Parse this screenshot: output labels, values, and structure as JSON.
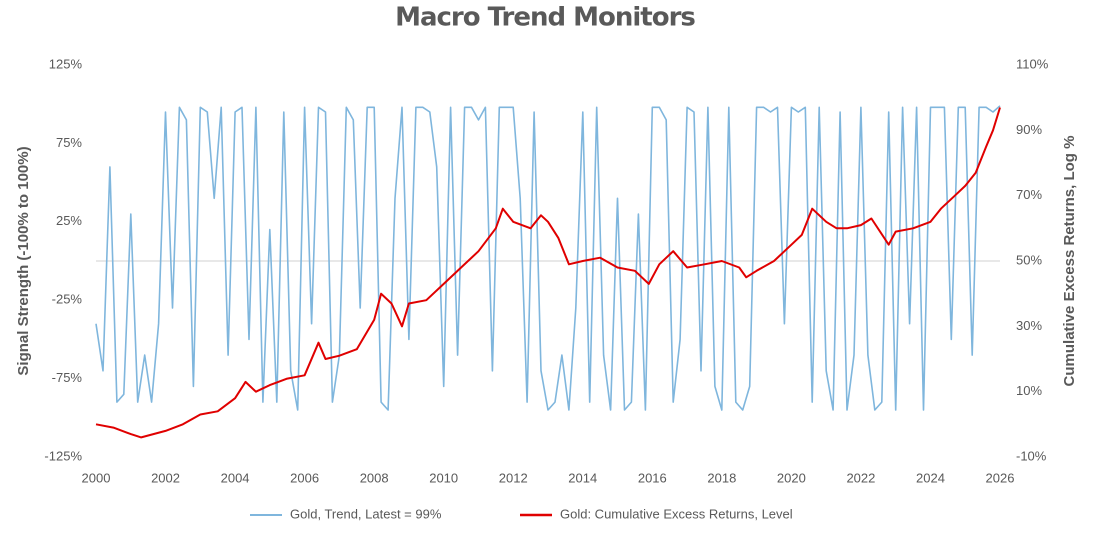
{
  "chart_data": {
    "type": "line",
    "title": "Macro Trend Monitors",
    "y_label": "Signal Strength (-100% to 100%)",
    "y2_label": "Cumulative Excess Returns, Log %",
    "xlim": [
      2000,
      2026
    ],
    "xticks": [
      2000,
      2002,
      2004,
      2006,
      2008,
      2010,
      2012,
      2014,
      2016,
      2018,
      2020,
      2022,
      2024,
      2026
    ],
    "ylim": [
      -125,
      125
    ],
    "yticks": [
      {
        "value": -125,
        "label": "-125%"
      },
      {
        "value": -75,
        "label": "-75%"
      },
      {
        "value": -25,
        "label": "-25%"
      },
      {
        "value": 25,
        "label": "25%"
      },
      {
        "value": 75,
        "label": "75%"
      },
      {
        "value": 125,
        "label": "125%"
      }
    ],
    "y2lim": [
      -10,
      110
    ],
    "y2ticks": [
      {
        "value": -10,
        "label": "-10%"
      },
      {
        "value": 10,
        "label": "10%"
      },
      {
        "value": 30,
        "label": "30%"
      },
      {
        "value": 50,
        "label": "50%"
      },
      {
        "value": 70,
        "label": "70%"
      },
      {
        "value": 90,
        "label": "90%"
      },
      {
        "value": 110,
        "label": "110%"
      }
    ],
    "series": [
      {
        "name": "Gold, Trend, Latest = 99%",
        "color": "#7fb6dd",
        "axis": "y",
        "x": [
          2000.0,
          2000.2,
          2000.4,
          2000.6,
          2000.8,
          2001.0,
          2001.2,
          2001.4,
          2001.6,
          2001.8,
          2002.0,
          2002.2,
          2002.4,
          2002.6,
          2002.8,
          2003.0,
          2003.2,
          2003.4,
          2003.6,
          2003.8,
          2004.0,
          2004.2,
          2004.4,
          2004.6,
          2004.8,
          2005.0,
          2005.2,
          2005.4,
          2005.6,
          2005.8,
          2006.0,
          2006.2,
          2006.4,
          2006.6,
          2006.8,
          2007.0,
          2007.2,
          2007.4,
          2007.6,
          2007.8,
          2008.0,
          2008.2,
          2008.4,
          2008.6,
          2008.8,
          2009.0,
          2009.2,
          2009.4,
          2009.6,
          2009.8,
          2010.0,
          2010.2,
          2010.4,
          2010.6,
          2010.8,
          2011.0,
          2011.2,
          2011.4,
          2011.6,
          2011.8,
          2012.0,
          2012.2,
          2012.4,
          2012.6,
          2012.8,
          2013.0,
          2013.2,
          2013.4,
          2013.6,
          2013.8,
          2014.0,
          2014.2,
          2014.4,
          2014.6,
          2014.8,
          2015.0,
          2015.2,
          2015.4,
          2015.6,
          2015.8,
          2016.0,
          2016.2,
          2016.4,
          2016.6,
          2016.8,
          2017.0,
          2017.2,
          2017.4,
          2017.6,
          2017.8,
          2018.0,
          2018.2,
          2018.4,
          2018.6,
          2018.8,
          2019.0,
          2019.2,
          2019.4,
          2019.6,
          2019.8,
          2020.0,
          2020.2,
          2020.4,
          2020.6,
          2020.8,
          2021.0,
          2021.2,
          2021.4,
          2021.6,
          2021.8,
          2022.0,
          2022.2,
          2022.4,
          2022.6,
          2022.8,
          2023.0,
          2023.2,
          2023.4,
          2023.6,
          2023.8,
          2024.0,
          2024.2,
          2024.4,
          2024.6,
          2024.8,
          2025.0,
          2025.2,
          2025.4,
          2025.6,
          2025.8,
          2026.0
        ],
        "values": [
          -40,
          -70,
          60,
          -90,
          -85,
          30,
          -90,
          -60,
          -90,
          -40,
          95,
          -30,
          98,
          90,
          -80,
          98,
          95,
          40,
          98,
          -60,
          95,
          98,
          -50,
          98,
          -90,
          20,
          -90,
          95,
          -70,
          -95,
          98,
          -40,
          98,
          95,
          -90,
          -60,
          98,
          90,
          -30,
          98,
          98,
          -90,
          -95,
          40,
          98,
          -50,
          98,
          98,
          95,
          60,
          -80,
          98,
          -60,
          98,
          98,
          90,
          98,
          -70,
          98,
          98,
          98,
          40,
          -90,
          95,
          -70,
          -95,
          -90,
          -60,
          -95,
          -30,
          95,
          -90,
          98,
          -60,
          -95,
          40,
          -95,
          -90,
          30,
          -95,
          98,
          98,
          90,
          -90,
          -50,
          98,
          95,
          -70,
          98,
          -80,
          -95,
          98,
          -90,
          -95,
          -80,
          98,
          98,
          95,
          98,
          -40,
          98,
          95,
          98,
          -90,
          98,
          -70,
          -95,
          95,
          -95,
          -60,
          98,
          -60,
          -95,
          -90,
          95,
          -95,
          98,
          -40,
          98,
          -95,
          98,
          98,
          98,
          -50,
          98,
          98,
          -60,
          98,
          98,
          95,
          99
        ]
      },
      {
        "name": "Gold: Cumulative Excess Returns, Level",
        "color": "#e00000",
        "axis": "y2",
        "x": [
          2000,
          2000.5,
          2001,
          2001.3,
          2002,
          2002.5,
          2003,
          2003.5,
          2004,
          2004.3,
          2004.6,
          2005,
          2005.5,
          2006,
          2006.4,
          2006.6,
          2007,
          2007.5,
          2008,
          2008.2,
          2008.5,
          2008.8,
          2009,
          2009.5,
          2010,
          2010.5,
          2011,
          2011.5,
          2011.7,
          2012,
          2012.5,
          2012.8,
          2013,
          2013.3,
          2013.6,
          2014,
          2014.5,
          2015,
          2015.5,
          2015.9,
          2016.2,
          2016.6,
          2017,
          2017.5,
          2018,
          2018.5,
          2018.7,
          2019,
          2019.5,
          2020,
          2020.3,
          2020.6,
          2021,
          2021.3,
          2021.6,
          2022,
          2022.3,
          2022.8,
          2023,
          2023.5,
          2024,
          2024.3,
          2024.7,
          2025,
          2025.3,
          2025.6,
          2025.8,
          2026
        ],
        "values": [
          0,
          -1,
          -3,
          -4,
          -2,
          0,
          3,
          4,
          8,
          13,
          10,
          12,
          14,
          15,
          25,
          20,
          21,
          23,
          32,
          40,
          37,
          30,
          37,
          38,
          43,
          48,
          53,
          60,
          66,
          62,
          60,
          64,
          62,
          57,
          49,
          50,
          51,
          48,
          47,
          43,
          49,
          53,
          48,
          49,
          50,
          48,
          45,
          47,
          50,
          55,
          58,
          66,
          62,
          60,
          60,
          61,
          63,
          55,
          59,
          60,
          62,
          66,
          70,
          73,
          77,
          85,
          90,
          97
        ]
      }
    ]
  }
}
